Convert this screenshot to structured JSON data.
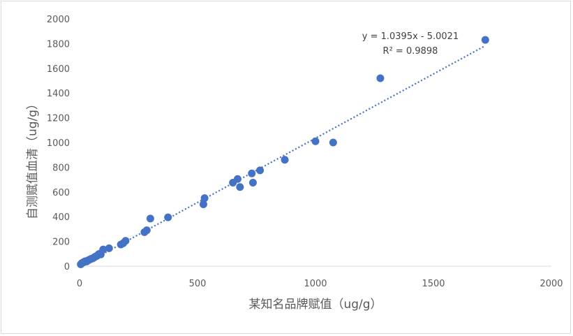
{
  "chart_data": {
    "type": "scatter",
    "xlabel": "某知名品牌赋值（ug/g）",
    "ylabel": "自测赋值血清（ug/g）",
    "xlim": [
      0,
      2000
    ],
    "ylim": [
      0,
      2000
    ],
    "x_ticks": [
      "0",
      "500",
      "1000",
      "1500",
      "2000"
    ],
    "y_ticks": [
      "0",
      "200",
      "400",
      "600",
      "800",
      "1000",
      "1200",
      "1400",
      "1600",
      "1800",
      "2000"
    ],
    "grid": false,
    "legend": "none",
    "marker_color": "#4472C4",
    "trendline": {
      "type": "linear",
      "slope": 1.0395,
      "intercept": -5.0021,
      "equation": "y = 1.0395x - 5.0021",
      "r2_label": "R² = 0.9898",
      "style": "dotted",
      "color": "#4472C4"
    },
    "series": [
      {
        "x": [
          5,
          10,
          15,
          20,
          25,
          30,
          35,
          40,
          45,
          50,
          55,
          60,
          65,
          70,
          75,
          80,
          85,
          90,
          100,
          125,
          175,
          185,
          195,
          275,
          285,
          300,
          375,
          525,
          530,
          650,
          670,
          680,
          730,
          735,
          765,
          870,
          1000,
          1075,
          1275,
          1720
        ],
        "y": [
          15,
          25,
          30,
          35,
          40,
          38,
          45,
          50,
          55,
          60,
          62,
          68,
          75,
          80,
          85,
          95,
          100,
          95,
          135,
          145,
          175,
          185,
          205,
          275,
          290,
          385,
          395,
          500,
          550,
          675,
          705,
          640,
          750,
          675,
          775,
          860,
          1010,
          1000,
          1520,
          1830
        ]
      }
    ]
  }
}
